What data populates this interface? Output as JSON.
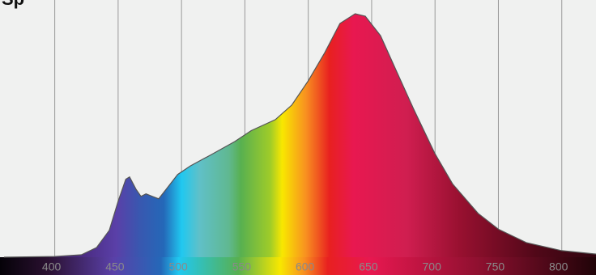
{
  "chart_data": {
    "type": "area",
    "title": "Sp",
    "x": [
      360,
      400,
      421,
      433,
      443,
      450,
      456,
      459,
      464,
      468,
      472,
      477,
      482,
      488,
      497,
      507,
      523,
      542,
      555,
      574,
      587,
      600,
      613,
      625,
      637,
      645,
      657,
      670,
      683,
      700,
      714,
      734,
      750,
      772,
      800,
      827
    ],
    "values": [
      0,
      0.003,
      0.01,
      0.04,
      0.11,
      0.23,
      0.32,
      0.33,
      0.28,
      0.25,
      0.26,
      0.25,
      0.24,
      0.28,
      0.34,
      0.375,
      0.42,
      0.475,
      0.52,
      0.565,
      0.625,
      0.725,
      0.84,
      0.96,
      1.0,
      0.99,
      0.91,
      0.76,
      0.61,
      0.425,
      0.3,
      0.18,
      0.115,
      0.06,
      0.027,
      0.013
    ],
    "xlim": [
      360,
      827
    ],
    "ylim": [
      0,
      1
    ],
    "xticks": [
      400,
      450,
      500,
      550,
      600,
      650,
      700,
      750,
      800
    ],
    "grid": true,
    "color": "spectrum"
  }
}
